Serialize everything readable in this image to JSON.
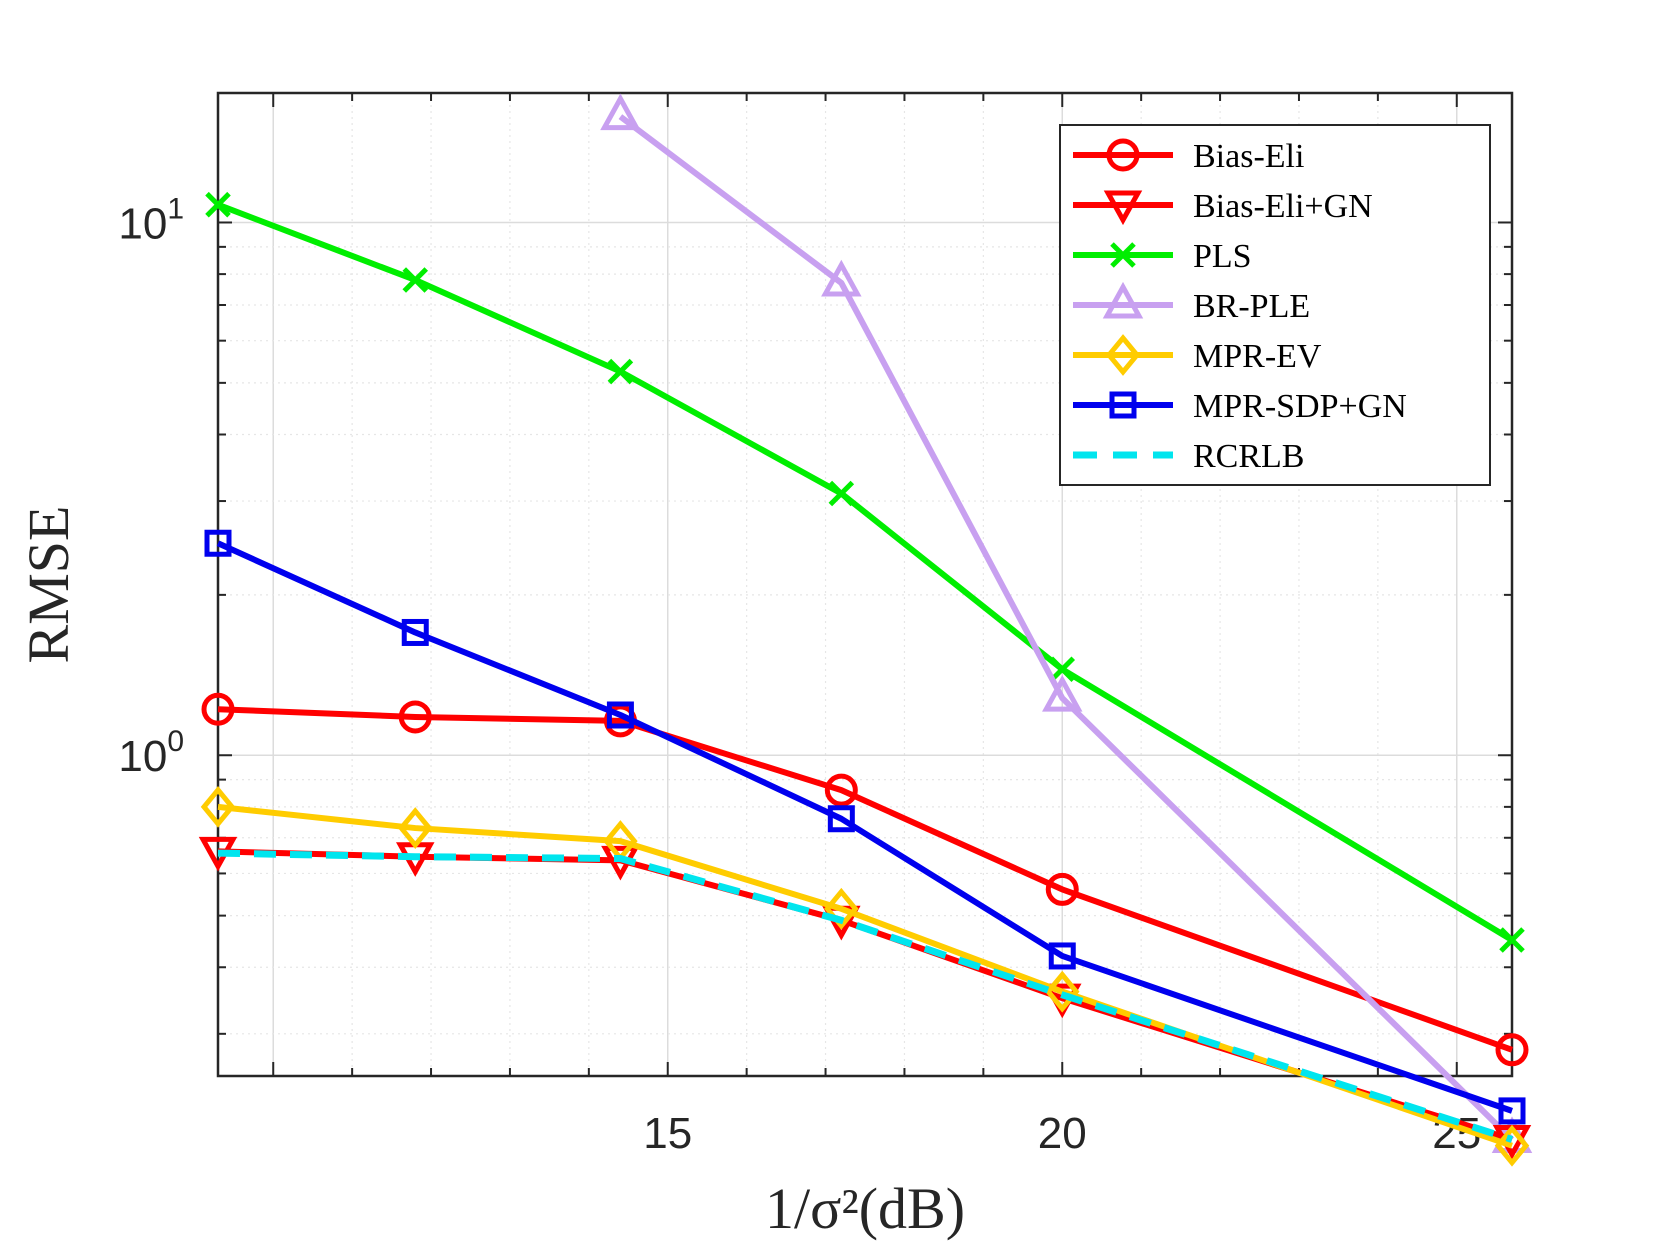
{
  "chart_data": {
    "type": "line",
    "title": "",
    "xlabel": "1/σ²(dB)",
    "ylabel": "RMSE",
    "xlim": [
      9.3,
      25.7
    ],
    "ylim": [
      0.25,
      17.5
    ],
    "yscale": "log",
    "grid": true,
    "minor_grid": true,
    "legend_position": "top-right",
    "x_ticks": [
      {
        "value": 15,
        "label": "15"
      },
      {
        "value": 20,
        "label": "20"
      },
      {
        "value": 25,
        "label": "25"
      }
    ],
    "y_ticks": [
      {
        "value": 1,
        "base": "10",
        "exp": "0"
      },
      {
        "value": 10,
        "base": "10",
        "exp": "1"
      }
    ],
    "series": [
      {
        "name": "Bias-Eli",
        "color": "#ff0000",
        "marker": "circle",
        "dash": false,
        "x": [
          9.3,
          11.8,
          14.4,
          17.2,
          20.0,
          25.7
        ],
        "y": [
          1.22,
          1.18,
          1.16,
          0.86,
          0.56,
          0.28
        ]
      },
      {
        "name": "Bias-Eli+GN",
        "color": "#ff0000",
        "marker": "triangle-down",
        "dash": false,
        "x": [
          9.3,
          11.8,
          14.4,
          17.2,
          20.0,
          25.7
        ],
        "y": [
          0.66,
          0.645,
          0.635,
          0.49,
          0.35,
          0.19
        ]
      },
      {
        "name": "PLS",
        "color": "#00ee00",
        "marker": "x",
        "dash": false,
        "x": [
          9.3,
          11.8,
          14.4,
          17.2,
          20.0,
          25.7
        ],
        "y": [
          10.8,
          7.8,
          5.25,
          3.1,
          1.45,
          0.45
        ]
      },
      {
        "name": "BR-PLE",
        "color": "#c8a0f0",
        "marker": "triangle-up",
        "dash": false,
        "x": [
          14.4,
          17.2,
          20.0,
          25.7
        ],
        "y": [
          15.8,
          7.7,
          1.28,
          0.19
        ]
      },
      {
        "name": "MPR-EV",
        "color": "#ffcc00",
        "marker": "diamond",
        "dash": false,
        "x": [
          9.3,
          11.8,
          14.4,
          17.2,
          20.0,
          25.7
        ],
        "y": [
          0.8,
          0.73,
          0.69,
          0.515,
          0.36,
          0.185
        ]
      },
      {
        "name": "MPR-SDP+GN",
        "color": "#0000ee",
        "marker": "square",
        "dash": false,
        "x": [
          9.3,
          11.8,
          14.4,
          17.2,
          20.0,
          25.7
        ],
        "y": [
          2.5,
          1.7,
          1.19,
          0.76,
          0.42,
          0.215
        ]
      },
      {
        "name": "RCRLB",
        "color": "#00e5ee",
        "marker": "none",
        "dash": true,
        "x": [
          9.3,
          11.8,
          14.4,
          17.2,
          20.0,
          25.7
        ],
        "y": [
          0.655,
          0.645,
          0.64,
          0.49,
          0.355,
          0.19
        ]
      }
    ]
  }
}
